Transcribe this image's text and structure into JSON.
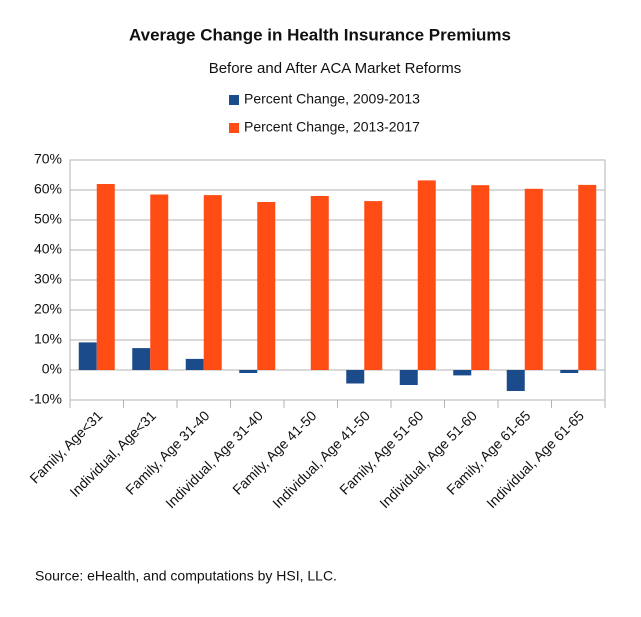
{
  "chart_data": {
    "type": "bar",
    "title": "Average Change in Health Insurance Premiums",
    "subtitle": "Before and After ACA Market Reforms",
    "source": "Source:  eHealth, and computations by HSI, LLC.",
    "categories": [
      "Family, Age<31",
      "Individual, Age<31",
      "Family, Age 31-40",
      "Individual, Age 31-40",
      "Family, Age 41-50",
      "Individual, Age 41-50",
      "Family, Age 51-60",
      "Individual, Age 51-60",
      "Family, Age 61-65",
      "Individual, Age 61-65"
    ],
    "series": [
      {
        "name": "Percent Change, 2009-2013",
        "color": "#1c4b8c",
        "values": [
          9.2,
          7.3,
          3.7,
          -1,
          0,
          -4.5,
          -5,
          -1.8,
          -7,
          -1
        ]
      },
      {
        "name": "Percent Change, 2013-2017",
        "color": "#ff4b14",
        "values": [
          62,
          58.5,
          58.3,
          56,
          58,
          56.3,
          63.2,
          61.6,
          60.4,
          61.7
        ]
      }
    ],
    "ylim": [
      -10,
      70
    ],
    "yticks": [
      {
        "value": -10,
        "label": "-10%"
      },
      {
        "value": 0,
        "label": "0%"
      },
      {
        "value": 10,
        "label": "10%"
      },
      {
        "value": 20,
        "label": "20%"
      },
      {
        "value": 30,
        "label": "30%"
      },
      {
        "value": 40,
        "label": "40%"
      },
      {
        "value": 50,
        "label": "50%"
      },
      {
        "value": 60,
        "label": "60%"
      },
      {
        "value": 70,
        "label": "70%"
      }
    ],
    "grid": true,
    "legend": "top"
  }
}
